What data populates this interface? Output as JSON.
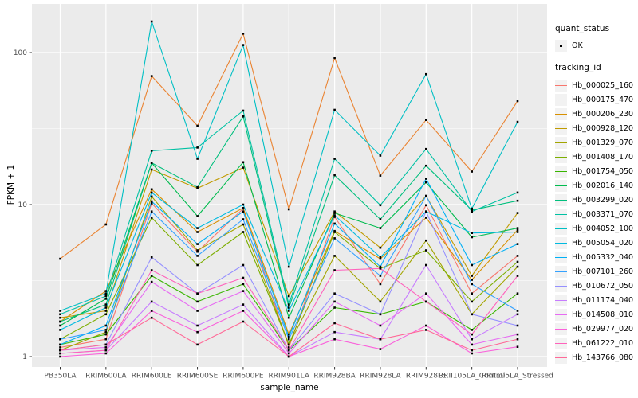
{
  "colors": {
    "panel_bg": "#EBEBEB",
    "grid_major": "#FFFFFF",
    "grid_minor": "#FFFFFF",
    "axis_text": "#4D4D4D",
    "tick_mark": "#333333",
    "point": "#000000",
    "legend_key_bg": "#F2F2F2"
  },
  "legend": {
    "quant_status": {
      "title": "quant_status",
      "items": [
        {
          "label": "OK",
          "marker": "black-point"
        }
      ]
    },
    "tracking_id": {
      "title": "tracking_id"
    }
  },
  "chart_data": {
    "type": "line",
    "title": "",
    "xlabel": "sample_name",
    "ylabel": "FPKM + 1",
    "yscale": "log10",
    "yticks": [
      1,
      10,
      100
    ],
    "ylim": [
      0.85,
      210
    ],
    "grid": true,
    "legend_position": "right",
    "point_marker": "small-black-square",
    "x_categories": [
      "PB350LA",
      "RRIM600LA",
      "RRIM600LE",
      "RRIM600SE",
      "RRIM600PE",
      "RRIM901LA",
      "RRIM928BA",
      "RRIM928LA",
      "RRIM928LE",
      "RRII105LA_Control",
      "RRII105LA_Stressed"
    ],
    "series": [
      {
        "name": "Hb_000025_160",
        "color": "#F8766D",
        "values": [
          1.15,
          1.3,
          10.2,
          4.9,
          9.4,
          1.15,
          8.3,
          3.0,
          9.9,
          2.6,
          4.6
        ]
      },
      {
        "name": "Hb_000175_470",
        "color": "#EA8331",
        "values": [
          4.4,
          7.4,
          70,
          33,
          133,
          9.3,
          92,
          15.5,
          36,
          16.5,
          48
        ]
      },
      {
        "name": "Hb_000206_230",
        "color": "#D89000",
        "values": [
          1.7,
          2.7,
          12.6,
          6.6,
          9.5,
          1.4,
          6.7,
          4.4,
          8.2,
          3.2,
          6.8
        ]
      },
      {
        "name": "Hb_000928_120",
        "color": "#C09B00",
        "values": [
          1.8,
          2.0,
          17.0,
          12.8,
          17.5,
          2.5,
          9.0,
          5.2,
          11.4,
          3.4,
          8.8
        ]
      },
      {
        "name": "Hb_001329_070",
        "color": "#A3A500",
        "values": [
          1.1,
          1.45,
          11.3,
          5.0,
          7.4,
          1.2,
          4.6,
          2.3,
          5.8,
          1.9,
          3.9
        ]
      },
      {
        "name": "Hb_001408_170",
        "color": "#7CAE00",
        "values": [
          1.3,
          1.9,
          8.2,
          4.0,
          6.6,
          1.2,
          6.6,
          3.8,
          5.0,
          2.3,
          4.2
        ]
      },
      {
        "name": "Hb_001754_050",
        "color": "#39B600",
        "values": [
          1.2,
          1.4,
          3.4,
          2.3,
          3.0,
          1.1,
          2.1,
          1.9,
          2.3,
          1.5,
          2.6
        ]
      },
      {
        "name": "Hb_002016_140",
        "color": "#00BB4E",
        "values": [
          1.6,
          2.4,
          18.8,
          8.4,
          19.0,
          1.8,
          8.8,
          7.0,
          14.0,
          6.1,
          7.0
        ]
      },
      {
        "name": "Hb_003299_020",
        "color": "#00BF7D",
        "values": [
          1.7,
          2.2,
          18.8,
          13.0,
          38.0,
          2.1,
          15.6,
          8.0,
          18.0,
          9.2,
          10.6
        ]
      },
      {
        "name": "Hb_003371_070",
        "color": "#00C1A3",
        "values": [
          1.9,
          2.5,
          22.6,
          23.7,
          41.5,
          2.2,
          20.0,
          9.9,
          23.2,
          9.0,
          12.0
        ]
      },
      {
        "name": "Hb_004052_100",
        "color": "#00BFC4",
        "values": [
          2.0,
          2.6,
          160,
          20,
          112,
          3.9,
          42,
          21,
          72,
          9.4,
          35
        ]
      },
      {
        "name": "Hb_005054_020",
        "color": "#00BAE0",
        "values": [
          1.5,
          2.1,
          12.0,
          7.0,
          10.0,
          2.0,
          8.5,
          4.5,
          9.0,
          6.5,
          6.6
        ]
      },
      {
        "name": "Hb_005332_040",
        "color": "#00B0F6",
        "values": [
          1.2,
          1.6,
          10.5,
          5.5,
          9.0,
          1.35,
          7.5,
          3.9,
          14.8,
          4.0,
          5.5
        ]
      },
      {
        "name": "Hb_007101_260",
        "color": "#35A2FF",
        "values": [
          1.3,
          1.5,
          9.0,
          4.6,
          8.0,
          1.3,
          6.0,
          3.4,
          11.4,
          3.0,
          2.0
        ]
      },
      {
        "name": "Hb_010672_050",
        "color": "#9590FF",
        "values": [
          1.1,
          1.2,
          4.5,
          2.6,
          4.0,
          1.1,
          2.6,
          1.9,
          9.0,
          1.9,
          1.6
        ]
      },
      {
        "name": "Hb_011174_040",
        "color": "#C77CFF",
        "values": [
          1.05,
          1.1,
          2.3,
          1.6,
          2.2,
          1.0,
          1.45,
          1.3,
          4.0,
          1.3,
          1.9
        ]
      },
      {
        "name": "Hb_014508_010",
        "color": "#E76BF3",
        "values": [
          1.1,
          1.15,
          3.1,
          2.0,
          2.7,
          1.05,
          2.3,
          1.6,
          2.6,
          1.2,
          1.4
        ]
      },
      {
        "name": "Hb_029977_020",
        "color": "#FA62DB",
        "values": [
          1.0,
          1.05,
          2.0,
          1.45,
          2.0,
          1.0,
          1.3,
          1.12,
          1.6,
          1.05,
          1.16
        ]
      },
      {
        "name": "Hb_061222_010",
        "color": "#FF62BC",
        "values": [
          1.05,
          1.1,
          3.7,
          2.6,
          3.3,
          1.1,
          3.7,
          3.8,
          2.3,
          1.4,
          3.4
        ]
      },
      {
        "name": "Hb_143766_080",
        "color": "#FF6A98",
        "values": [
          1.1,
          1.2,
          1.8,
          1.2,
          1.7,
          1.0,
          1.66,
          1.3,
          1.5,
          1.1,
          1.3
        ]
      }
    ]
  }
}
